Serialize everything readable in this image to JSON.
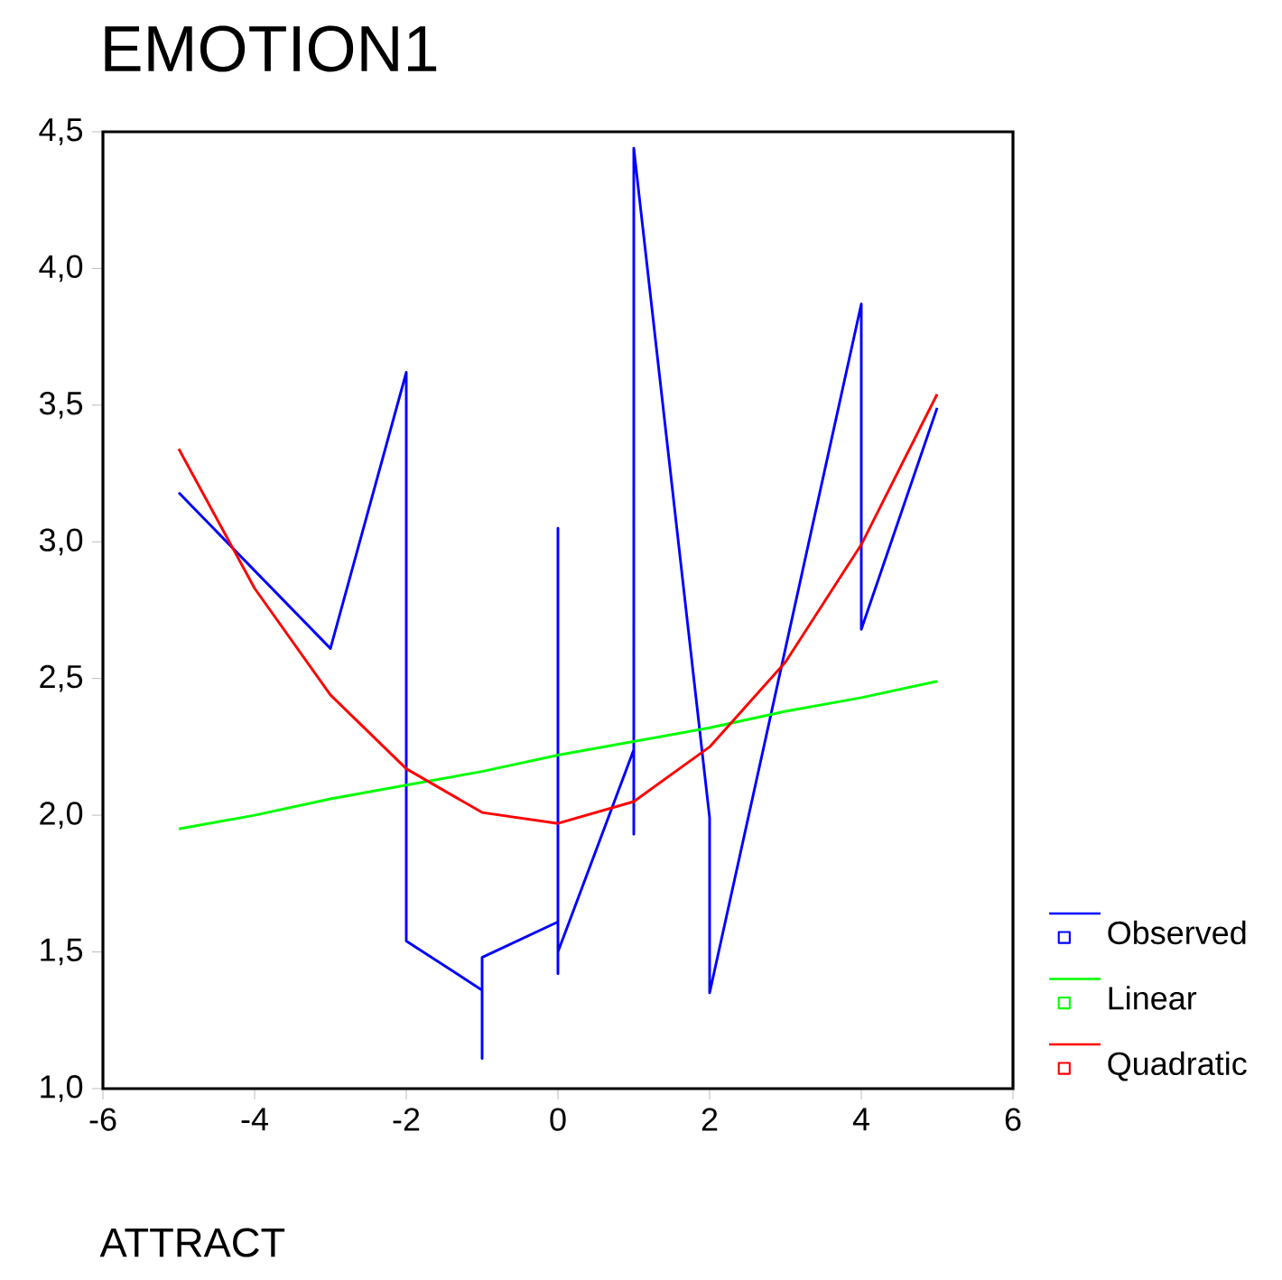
{
  "chart_data": {
    "type": "line",
    "title": "EMOTION1",
    "xlabel": "ATTRACT",
    "xlim": [
      -6,
      6
    ],
    "ylim": [
      1.0,
      4.5
    ],
    "xticks": [
      -6,
      -4,
      -2,
      0,
      2,
      4,
      6
    ],
    "yticks": [
      {
        "value": 1.0,
        "label": "1,0"
      },
      {
        "value": 1.5,
        "label": "1,5"
      },
      {
        "value": 2.0,
        "label": "2,0"
      },
      {
        "value": 2.5,
        "label": "2,5"
      },
      {
        "value": 3.0,
        "label": "3,0"
      },
      {
        "value": 3.5,
        "label": "3,5"
      },
      {
        "value": 4.0,
        "label": "4,0"
      },
      {
        "value": 4.5,
        "label": "4,5"
      }
    ],
    "legend": "right",
    "grid": false,
    "series": [
      {
        "name": "Observed",
        "color": "#0000ff",
        "x": [
          -5,
          -3,
          -2,
          -2,
          -1,
          -1,
          -1,
          0,
          0,
          0,
          0,
          1,
          1,
          1,
          2,
          2,
          4,
          4,
          5
        ],
        "values": [
          3.18,
          2.61,
          3.62,
          1.54,
          1.36,
          1.11,
          1.48,
          1.61,
          3.05,
          1.42,
          1.5,
          2.24,
          1.93,
          4.44,
          1.99,
          1.35,
          3.87,
          2.68,
          3.49
        ]
      },
      {
        "name": "Linear",
        "color": "#00ff00",
        "x": [
          -5,
          -4,
          -3,
          -2,
          -1,
          0,
          1,
          2,
          3,
          4,
          5
        ],
        "values": [
          1.95,
          2.0,
          2.06,
          2.11,
          2.16,
          2.22,
          2.27,
          2.32,
          2.38,
          2.43,
          2.49
        ]
      },
      {
        "name": "Quadratic",
        "color": "#ff0000",
        "x": [
          -5,
          -4,
          -3,
          -2,
          -1,
          0,
          1,
          2,
          3,
          4,
          5
        ],
        "values": [
          3.34,
          2.83,
          2.44,
          2.17,
          2.01,
          1.97,
          2.05,
          2.25,
          2.56,
          2.99,
          3.54
        ]
      }
    ]
  }
}
